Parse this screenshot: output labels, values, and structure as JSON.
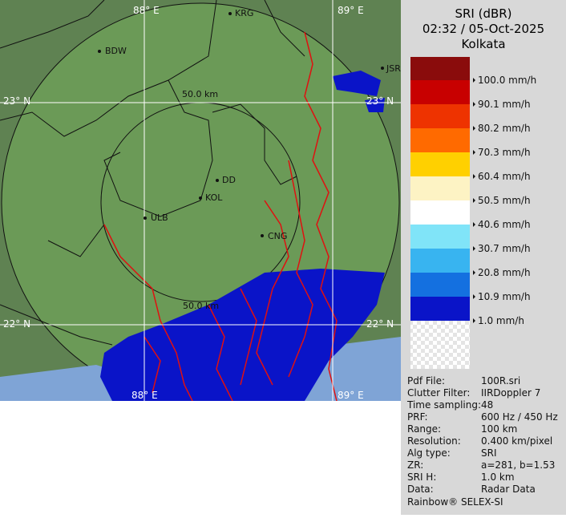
{
  "map": {
    "grid_labels": [
      "88° E",
      "89° E",
      "23° N",
      "23° N",
      "22° N",
      "22° N",
      "88° E",
      "89° E"
    ],
    "range_labels": [
      "50.0 km",
      "50.0 km"
    ],
    "cities": [
      "BDW",
      "KRG",
      "JSR",
      "DD",
      "KOL",
      "ULB",
      "CNG"
    ]
  },
  "legend": {
    "title": "SRI (dBR)",
    "time": "02:32 / 05-Oct-2025",
    "site": "Kolkata",
    "levels": [
      "100.0 mm/h",
      "90.1 mm/h",
      "80.2 mm/h",
      "70.3 mm/h",
      "60.4 mm/h",
      "50.5 mm/h",
      "40.6 mm/h",
      "30.7 mm/h",
      "20.8 mm/h",
      "10.9 mm/h",
      "1.0 mm/h"
    ]
  },
  "info": {
    "rows": [
      [
        "Pdf File:",
        "100R.sri"
      ],
      [
        "Clutter Filter:",
        "IIRDoppler 7"
      ],
      [
        "Time sampling:",
        "48"
      ],
      [
        "PRF:",
        "600 Hz / 450 Hz"
      ],
      [
        "Range:",
        "100 km"
      ],
      [
        "Resolution:",
        "0.400 km/pixel"
      ],
      [
        "Alg type:",
        "SRI"
      ],
      [
        "ZR:",
        "a=281, b=1.53"
      ],
      [
        "SRI H:",
        "1.0 km"
      ],
      [
        "Data:",
        "Radar Data"
      ]
    ],
    "footer": "Rainbow® SELEX-SI"
  }
}
